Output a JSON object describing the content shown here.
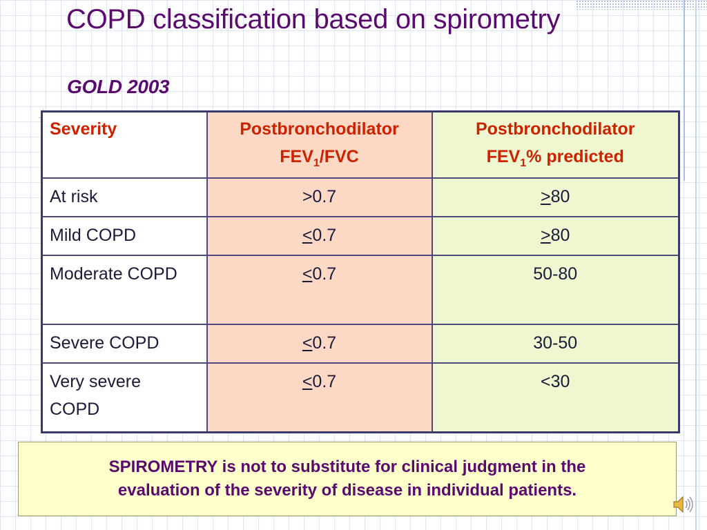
{
  "slide": {
    "title": "COPD classification based on spirometry",
    "subtitle": "GOLD 2003"
  },
  "table": {
    "header": {
      "severity": "Severity",
      "fvc_line1": "Postbronchodilator",
      "fvc_line2_pre": "FEV",
      "fvc_line2_sub": "1",
      "fvc_line2_post": "/FVC",
      "pred_line1": "Postbronchodilator",
      "pred_line2_pre": "FEV",
      "pred_line2_sub": "1",
      "pred_line2_post": "% predicted"
    },
    "rows": [
      {
        "severity": "At risk",
        "fvc_sym": "",
        "fvc_val": ">0.7",
        "pred_sym": ">",
        "pred_val": "80"
      },
      {
        "severity": "Mild COPD",
        "fvc_sym": "<",
        "fvc_val": "0.7",
        "pred_sym": ">",
        "pred_val": "80"
      },
      {
        "severity": "Moderate COPD",
        "fvc_sym": "<",
        "fvc_val": "0.7",
        "pred_sym": "",
        "pred_val": "50-80"
      },
      {
        "severity": "Severe COPD",
        "fvc_sym": "<",
        "fvc_val": "0.7",
        "pred_sym": "",
        "pred_val": "30-50"
      },
      {
        "severity_line1": "Very severe",
        "severity_line2": "COPD",
        "fvc_sym": "<",
        "fvc_val": "0.7",
        "pred_sym": "",
        "pred_val": "<30"
      }
    ]
  },
  "note": {
    "text_line1": "SPIROMETRY is not to substitute for clinical judgment in the",
    "text_line2": "evaluation of the severity of disease in individual patients."
  },
  "colors": {
    "title": "#5a0a6e",
    "header_text": "#cc2200",
    "fvc_column_bg": "#fdd9c5",
    "pred_column_bg": "#eef7cf",
    "note_bg": "#ffffcc"
  },
  "icons": {
    "speaker": "speaker-icon"
  }
}
